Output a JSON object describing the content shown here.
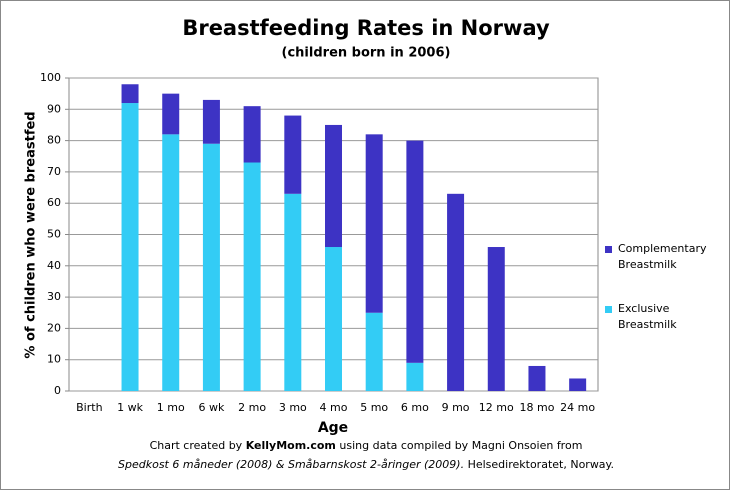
{
  "chart_data": {
    "type": "stacked_bar",
    "title": "Breastfeeding Rates in Norway",
    "subtitle": "(children born in 2006)",
    "x_label": "Age",
    "y_label": "% of children who were breastfed",
    "categories": [
      "Birth",
      "1 wk",
      "1 mo",
      "6 wk",
      "2 mo",
      "3 mo",
      "4 mo",
      "5 mo",
      "6 mo",
      "9 mo",
      "12 mo",
      "18 mo",
      "24 mo"
    ],
    "series": [
      {
        "name": "Exclusive Breastmilk",
        "color": "#33ccf5",
        "values": [
          null,
          92,
          82,
          79,
          73,
          63,
          46,
          25,
          9,
          0,
          0,
          0,
          0
        ]
      },
      {
        "name": "Complementary Breastmilk",
        "color": "#3d33c4",
        "values": [
          null,
          6,
          13,
          14,
          18,
          25,
          39,
          57,
          71,
          63,
          46,
          8,
          4
        ]
      }
    ],
    "ylim": [
      0,
      100
    ],
    "yticks": [
      0,
      10,
      20,
      30,
      40,
      50,
      60,
      70,
      80,
      90,
      100
    ],
    "grid": true,
    "source": [
      [
        "Chart created by ",
        "KellyMom.com",
        "  using data  compiled by Magni Onsoien from"
      ],
      [
        "Spedkost 6 måneder (2008) & Småbarnskost 2-åringer (2009).",
        " Helsedirektoratet, Norway."
      ]
    ]
  }
}
